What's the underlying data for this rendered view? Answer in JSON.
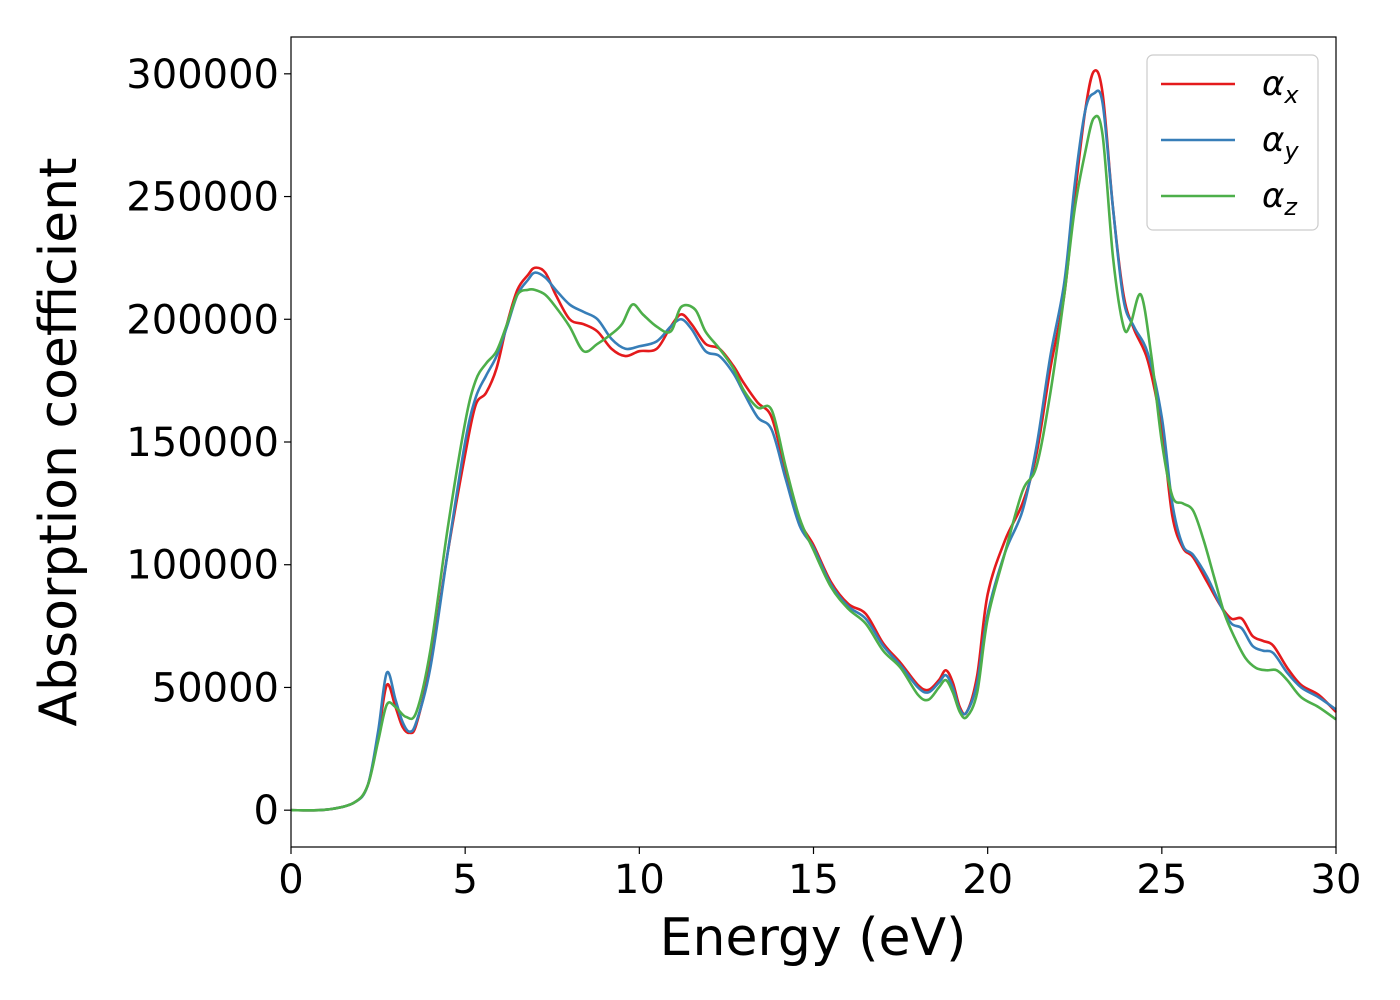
{
  "chart_data": {
    "type": "line",
    "title": "",
    "xlabel": "Energy (eV)",
    "ylabel": "Absorption coefficient",
    "xlim": [
      0,
      30
    ],
    "ylim": [
      -15000,
      315000
    ],
    "xticks": [
      0,
      5,
      10,
      15,
      20,
      25,
      30
    ],
    "yticks": [
      0,
      50000,
      100000,
      150000,
      200000,
      250000,
      300000
    ],
    "xtick_labels": [
      "0",
      "5",
      "10",
      "15",
      "20",
      "25",
      "30"
    ],
    "ytick_labels": [
      "0",
      "50000",
      "100000",
      "150000",
      "200000",
      "250000",
      "300000"
    ],
    "grid": false,
    "legend_position": "top-right",
    "series": [
      {
        "name": "αx",
        "symbol": "α",
        "subscript": "x",
        "color": "#e41a1c",
        "points": [
          [
            0,
            0
          ],
          [
            1,
            200
          ],
          [
            1.8,
            3000
          ],
          [
            2.2,
            10000
          ],
          [
            2.5,
            30000
          ],
          [
            2.75,
            51000
          ],
          [
            3.0,
            42000
          ],
          [
            3.2,
            34000
          ],
          [
            3.4,
            31500
          ],
          [
            3.6,
            35000
          ],
          [
            4.0,
            60000
          ],
          [
            4.5,
            105000
          ],
          [
            5.0,
            145000
          ],
          [
            5.3,
            165000
          ],
          [
            5.6,
            170000
          ],
          [
            5.9,
            180000
          ],
          [
            6.2,
            198000
          ],
          [
            6.5,
            212000
          ],
          [
            6.8,
            218000
          ],
          [
            7.0,
            221000
          ],
          [
            7.3,
            219000
          ],
          [
            7.6,
            210000
          ],
          [
            8.0,
            200000
          ],
          [
            8.4,
            198000
          ],
          [
            8.8,
            195000
          ],
          [
            9.2,
            188000
          ],
          [
            9.6,
            185000
          ],
          [
            10.0,
            187000
          ],
          [
            10.5,
            188000
          ],
          [
            10.9,
            197000
          ],
          [
            11.2,
            202000
          ],
          [
            11.5,
            198000
          ],
          [
            11.9,
            190000
          ],
          [
            12.3,
            188000
          ],
          [
            12.7,
            181000
          ],
          [
            13.0,
            174000
          ],
          [
            13.4,
            166000
          ],
          [
            13.8,
            160000
          ],
          [
            14.2,
            138000
          ],
          [
            14.6,
            118000
          ],
          [
            15.0,
            108000
          ],
          [
            15.5,
            93000
          ],
          [
            16.0,
            84000
          ],
          [
            16.5,
            80000
          ],
          [
            17.0,
            68000
          ],
          [
            17.5,
            60000
          ],
          [
            18.0,
            51000
          ],
          [
            18.3,
            49000
          ],
          [
            18.6,
            53000
          ],
          [
            18.8,
            57000
          ],
          [
            19.0,
            52000
          ],
          [
            19.2,
            42000
          ],
          [
            19.4,
            40000
          ],
          [
            19.7,
            55000
          ],
          [
            20.0,
            88000
          ],
          [
            20.5,
            110000
          ],
          [
            21.0,
            125000
          ],
          [
            21.4,
            145000
          ],
          [
            21.8,
            180000
          ],
          [
            22.2,
            210000
          ],
          [
            22.5,
            250000
          ],
          [
            22.8,
            285000
          ],
          [
            23.05,
            301000
          ],
          [
            23.3,
            292000
          ],
          [
            23.6,
            245000
          ],
          [
            23.9,
            210000
          ],
          [
            24.2,
            196000
          ],
          [
            24.6,
            183000
          ],
          [
            25.0,
            155000
          ],
          [
            25.3,
            120000
          ],
          [
            25.6,
            107000
          ],
          [
            25.9,
            103000
          ],
          [
            26.3,
            93000
          ],
          [
            26.7,
            83000
          ],
          [
            27.0,
            78000
          ],
          [
            27.3,
            78000
          ],
          [
            27.6,
            71000
          ],
          [
            27.9,
            69000
          ],
          [
            28.2,
            67000
          ],
          [
            28.6,
            58000
          ],
          [
            29.0,
            51000
          ],
          [
            29.5,
            47000
          ],
          [
            30.0,
            40000
          ]
        ]
      },
      {
        "name": "αy",
        "symbol": "α",
        "subscript": "y",
        "color": "#377eb8",
        "points": [
          [
            0,
            0
          ],
          [
            1,
            200
          ],
          [
            1.8,
            3000
          ],
          [
            2.2,
            10000
          ],
          [
            2.5,
            32000
          ],
          [
            2.75,
            56000
          ],
          [
            3.0,
            45000
          ],
          [
            3.2,
            36000
          ],
          [
            3.4,
            32000
          ],
          [
            3.6,
            36000
          ],
          [
            4.0,
            58000
          ],
          [
            4.5,
            105000
          ],
          [
            5.0,
            150000
          ],
          [
            5.3,
            168000
          ],
          [
            5.6,
            177000
          ],
          [
            5.9,
            185000
          ],
          [
            6.2,
            197000
          ],
          [
            6.5,
            210000
          ],
          [
            6.8,
            216000
          ],
          [
            7.0,
            219000
          ],
          [
            7.3,
            217000
          ],
          [
            7.6,
            212000
          ],
          [
            8.0,
            206000
          ],
          [
            8.4,
            203000
          ],
          [
            8.8,
            200000
          ],
          [
            9.2,
            192000
          ],
          [
            9.6,
            188000
          ],
          [
            10.0,
            189000
          ],
          [
            10.5,
            191000
          ],
          [
            10.9,
            197000
          ],
          [
            11.2,
            200000
          ],
          [
            11.5,
            196000
          ],
          [
            11.9,
            187000
          ],
          [
            12.3,
            185000
          ],
          [
            12.7,
            178000
          ],
          [
            13.0,
            170000
          ],
          [
            13.4,
            160000
          ],
          [
            13.8,
            155000
          ],
          [
            14.2,
            135000
          ],
          [
            14.6,
            116000
          ],
          [
            15.0,
            107000
          ],
          [
            15.5,
            92000
          ],
          [
            16.0,
            83000
          ],
          [
            16.5,
            78000
          ],
          [
            17.0,
            67000
          ],
          [
            17.5,
            59000
          ],
          [
            18.0,
            50000
          ],
          [
            18.3,
            48000
          ],
          [
            18.6,
            52000
          ],
          [
            18.8,
            55000
          ],
          [
            19.0,
            50000
          ],
          [
            19.2,
            41000
          ],
          [
            19.4,
            40000
          ],
          [
            19.7,
            52000
          ],
          [
            20.0,
            80000
          ],
          [
            20.5,
            105000
          ],
          [
            21.0,
            122000
          ],
          [
            21.4,
            148000
          ],
          [
            21.8,
            185000
          ],
          [
            22.2,
            215000
          ],
          [
            22.5,
            255000
          ],
          [
            22.8,
            285000
          ],
          [
            23.05,
            292000
          ],
          [
            23.3,
            288000
          ],
          [
            23.6,
            245000
          ],
          [
            23.9,
            208000
          ],
          [
            24.2,
            197000
          ],
          [
            24.6,
            186000
          ],
          [
            25.0,
            160000
          ],
          [
            25.3,
            125000
          ],
          [
            25.6,
            108000
          ],
          [
            25.9,
            104000
          ],
          [
            26.3,
            95000
          ],
          [
            26.7,
            83000
          ],
          [
            27.0,
            76000
          ],
          [
            27.3,
            74000
          ],
          [
            27.6,
            67000
          ],
          [
            27.9,
            65000
          ],
          [
            28.2,
            64000
          ],
          [
            28.6,
            56000
          ],
          [
            29.0,
            50000
          ],
          [
            29.5,
            46000
          ],
          [
            30.0,
            41000
          ]
        ]
      },
      {
        "name": "αz",
        "symbol": "α",
        "subscript": "z",
        "color": "#4daf4a",
        "points": [
          [
            0,
            0
          ],
          [
            1,
            200
          ],
          [
            1.8,
            3000
          ],
          [
            2.2,
            10000
          ],
          [
            2.5,
            28000
          ],
          [
            2.75,
            43000
          ],
          [
            3.0,
            42000
          ],
          [
            3.3,
            38000
          ],
          [
            3.6,
            40000
          ],
          [
            4.0,
            65000
          ],
          [
            4.5,
            115000
          ],
          [
            5.0,
            158000
          ],
          [
            5.3,
            175000
          ],
          [
            5.6,
            182000
          ],
          [
            5.9,
            187000
          ],
          [
            6.2,
            198000
          ],
          [
            6.5,
            210000
          ],
          [
            6.8,
            212000
          ],
          [
            7.0,
            212000
          ],
          [
            7.3,
            210000
          ],
          [
            7.6,
            205000
          ],
          [
            8.0,
            197000
          ],
          [
            8.4,
            187000
          ],
          [
            8.8,
            190000
          ],
          [
            9.2,
            194000
          ],
          [
            9.5,
            198000
          ],
          [
            9.8,
            206000
          ],
          [
            10.1,
            202000
          ],
          [
            10.5,
            197000
          ],
          [
            10.9,
            195000
          ],
          [
            11.2,
            205000
          ],
          [
            11.6,
            204000
          ],
          [
            11.9,
            195000
          ],
          [
            12.3,
            188000
          ],
          [
            12.7,
            180000
          ],
          [
            13.0,
            171000
          ],
          [
            13.4,
            164000
          ],
          [
            13.8,
            163000
          ],
          [
            14.2,
            140000
          ],
          [
            14.6,
            119000
          ],
          [
            15.0,
            106000
          ],
          [
            15.5,
            91000
          ],
          [
            16.0,
            82000
          ],
          [
            16.5,
            76000
          ],
          [
            17.0,
            65000
          ],
          [
            17.5,
            58000
          ],
          [
            18.0,
            47000
          ],
          [
            18.3,
            45000
          ],
          [
            18.6,
            50000
          ],
          [
            18.8,
            53000
          ],
          [
            19.0,
            48000
          ],
          [
            19.2,
            40000
          ],
          [
            19.4,
            38000
          ],
          [
            19.7,
            48000
          ],
          [
            20.0,
            78000
          ],
          [
            20.5,
            105000
          ],
          [
            21.0,
            130000
          ],
          [
            21.4,
            140000
          ],
          [
            21.8,
            170000
          ],
          [
            22.2,
            210000
          ],
          [
            22.5,
            245000
          ],
          [
            22.8,
            268000
          ],
          [
            23.05,
            282000
          ],
          [
            23.3,
            275000
          ],
          [
            23.6,
            225000
          ],
          [
            23.9,
            197000
          ],
          [
            24.1,
            198000
          ],
          [
            24.4,
            210000
          ],
          [
            24.7,
            185000
          ],
          [
            25.0,
            150000
          ],
          [
            25.3,
            128000
          ],
          [
            25.6,
            125000
          ],
          [
            25.9,
            122000
          ],
          [
            26.2,
            110000
          ],
          [
            26.5,
            95000
          ],
          [
            26.8,
            80000
          ],
          [
            27.1,
            70000
          ],
          [
            27.4,
            62000
          ],
          [
            27.7,
            58000
          ],
          [
            28.0,
            57000
          ],
          [
            28.3,
            57000
          ],
          [
            28.6,
            53000
          ],
          [
            29.0,
            46000
          ],
          [
            29.5,
            42000
          ],
          [
            30.0,
            37000
          ]
        ]
      }
    ]
  }
}
